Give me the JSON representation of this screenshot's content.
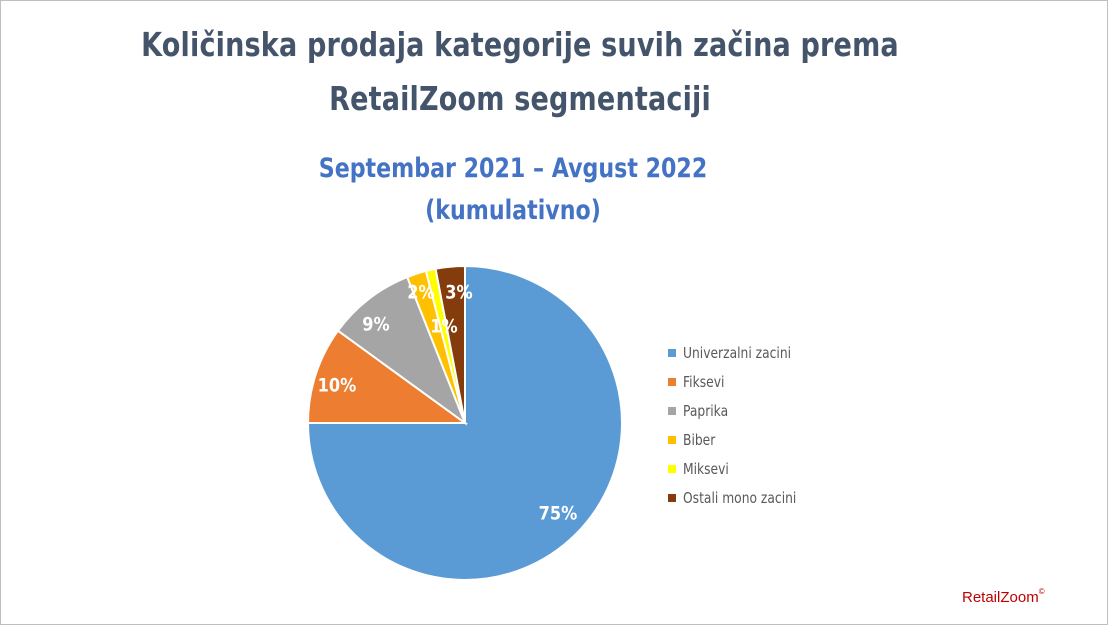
{
  "chart_data": {
    "type": "pie",
    "title": "Količinska prodaja kategorije suvih začina prema RetailZoom segmentaciji",
    "subtitle_line1": "Septembar 2021 – Avgust 2022",
    "subtitle_line2": "(kumulativno)",
    "categories": [
      "Univerzalni zacini",
      "Fiksevi",
      "Paprika",
      "Biber",
      "Miksevi",
      "Ostali mono zacini"
    ],
    "values": [
      75,
      10,
      9,
      2,
      1,
      3
    ],
    "labels": [
      "75%",
      "10%",
      "9%",
      "2%",
      "1%",
      "3%"
    ],
    "colors": [
      "#5b9bd5",
      "#ed7d31",
      "#a5a5a5",
      "#ffc000",
      "#ffff00",
      "#843c0c"
    ],
    "legend_position": "right",
    "start_angle_deg": 0,
    "direction": "clockwise"
  },
  "logo": {
    "text": "RetailZoom",
    "mark": "©"
  }
}
